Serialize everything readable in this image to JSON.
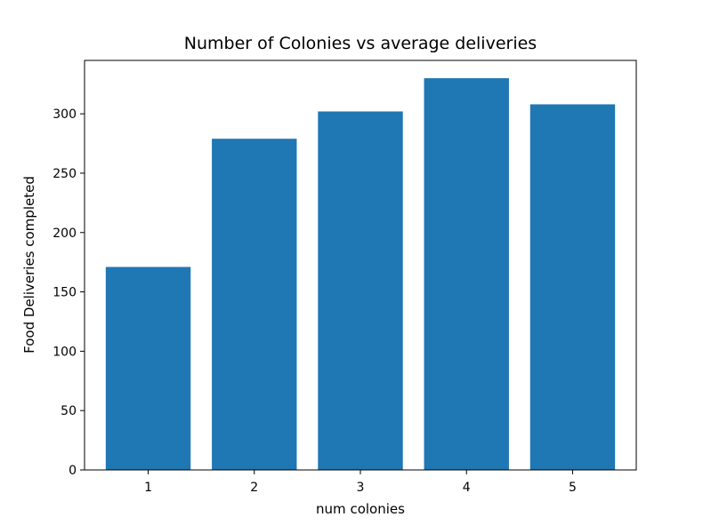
{
  "chart_data": {
    "type": "bar",
    "title": "Number of Colonies vs average deliveries",
    "xlabel": "num colonies",
    "ylabel": "Food Deliveries completed",
    "categories": [
      "1",
      "2",
      "3",
      "4",
      "5"
    ],
    "values": [
      171,
      279,
      302,
      330,
      308
    ],
    "ylim": [
      0,
      345
    ],
    "yticks": [
      "0",
      "50",
      "100",
      "150",
      "200",
      "250",
      "300"
    ],
    "bar_color": "#1f77b4",
    "grid": false,
    "legend": "none"
  }
}
